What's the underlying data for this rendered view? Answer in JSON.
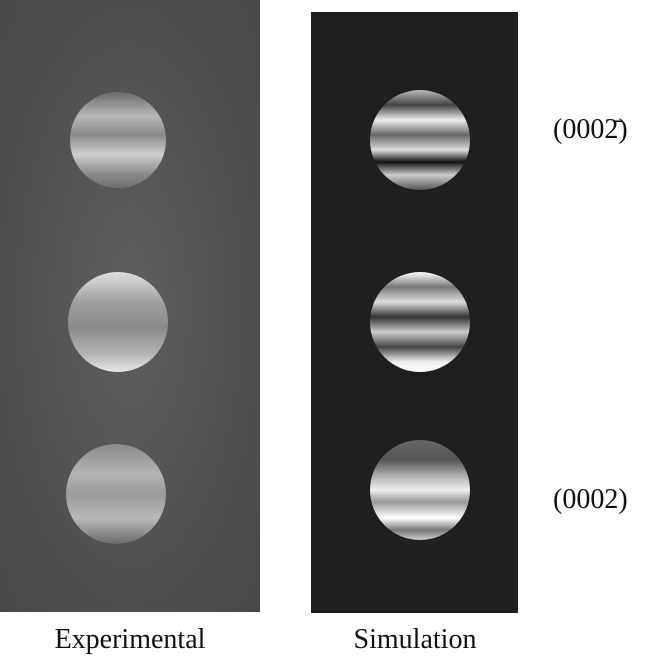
{
  "labels": {
    "top_reflection": "(0002̄)",
    "bottom_reflection": "(0002)"
  },
  "panels": [
    {
      "caption": "Experimental"
    },
    {
      "caption": "Simulation"
    }
  ]
}
